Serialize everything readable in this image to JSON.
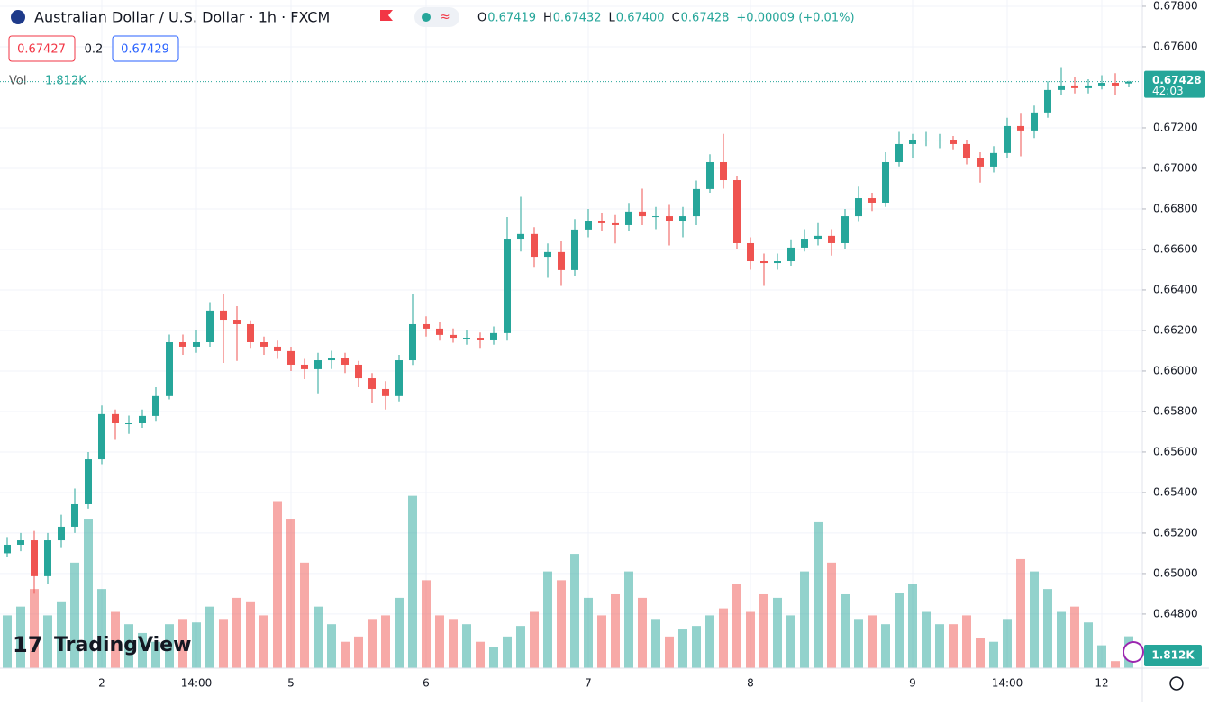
{
  "header": {
    "symbol": "Australian Dollar / U.S. Dollar · 1h · FXCM",
    "ohlc": [
      {
        "key": "O",
        "value": "0.67419"
      },
      {
        "key": "H",
        "value": "0.67432"
      },
      {
        "key": "L",
        "value": "0.67400"
      },
      {
        "key": "C",
        "value": "0.67428"
      }
    ],
    "change": "+0.00009 (+0.01%)",
    "bid": "0.67427",
    "spread": "0.2",
    "ask": "0.67429",
    "vol_title": "Vol",
    "vol_value": "1.812K",
    "countdown": "42:03",
    "volume_tag": "1.812K",
    "logo": "TradingView"
  },
  "chart_data": {
    "type": "candlestick",
    "up_color": "#26a69a",
    "down_color": "#ef5350",
    "grid": true,
    "categories": [
      null,
      null,
      null,
      null,
      null,
      null,
      null,
      "2",
      null,
      null,
      null,
      null,
      null,
      null,
      "14:00",
      null,
      null,
      null,
      null,
      null,
      null,
      "5",
      null,
      null,
      null,
      null,
      null,
      null,
      null,
      null,
      null,
      "6",
      null,
      null,
      null,
      null,
      null,
      null,
      null,
      null,
      null,
      null,
      null,
      "7",
      null,
      null,
      null,
      null,
      null,
      null,
      null,
      null,
      null,
      null,
      null,
      "8",
      null,
      null,
      null,
      null,
      null,
      null,
      null,
      null,
      null,
      null,
      null,
      "9",
      null,
      null,
      null,
      null,
      null,
      null,
      "14:00",
      null,
      null,
      null,
      null,
      null,
      null,
      "12",
      null,
      null
    ],
    "open": [
      0.651,
      0.65142,
      0.65164,
      0.64987,
      0.65164,
      0.65231,
      0.65342,
      0.65564,
      0.65787,
      0.65742,
      0.65742,
      0.65778,
      0.65876,
      0.66142,
      0.6612,
      0.66142,
      0.66298,
      0.66253,
      0.66231,
      0.66142,
      0.6612,
      0.66098,
      0.66031,
      0.66009,
      0.66053,
      0.66062,
      0.66031,
      0.65964,
      0.65911,
      0.65876,
      0.66053,
      0.66231,
      0.66209,
      0.66178,
      0.66164,
      0.66164,
      0.66151,
      0.66187,
      0.66653,
      0.66676,
      0.66564,
      0.66587,
      0.66498,
      0.66698,
      0.66742,
      0.66729,
      0.6672,
      0.66787,
      0.66764,
      0.66764,
      0.66742,
      0.66764,
      0.66898,
      0.67031,
      0.66942,
      0.66631,
      0.66542,
      0.66533,
      0.66542,
      0.66609,
      0.66653,
      0.66667,
      0.66631,
      0.66764,
      0.66853,
      0.66831,
      0.67031,
      0.6712,
      0.67142,
      0.67142,
      0.67142,
      0.6712,
      0.67053,
      0.67009,
      0.67076,
      0.67209,
      0.67187,
      0.67276,
      0.67387,
      0.67409,
      0.67396,
      0.67409,
      0.67422,
      0.67419
    ],
    "high": [
      0.6518,
      0.652,
      0.6521,
      0.652,
      0.6529,
      0.6542,
      0.656,
      0.6583,
      0.6581,
      0.6578,
      0.6581,
      0.6592,
      0.6618,
      0.6618,
      0.662,
      0.6634,
      0.6638,
      0.6632,
      0.6625,
      0.6617,
      0.6615,
      0.6612,
      0.6606,
      0.6609,
      0.661,
      0.6609,
      0.6605,
      0.6599,
      0.6595,
      0.6608,
      0.6638,
      0.6627,
      0.6624,
      0.6621,
      0.662,
      0.6619,
      0.6622,
      0.6676,
      0.6686,
      0.6671,
      0.6663,
      0.6664,
      0.6675,
      0.668,
      0.6678,
      0.6677,
      0.6683,
      0.669,
      0.6681,
      0.6682,
      0.6681,
      0.6694,
      0.6707,
      0.6717,
      0.6696,
      0.6666,
      0.6658,
      0.6658,
      0.6665,
      0.667,
      0.6673,
      0.667,
      0.668,
      0.6691,
      0.6688,
      0.6708,
      0.6718,
      0.6717,
      0.6718,
      0.6717,
      0.6716,
      0.6714,
      0.6708,
      0.6711,
      0.6725,
      0.6727,
      0.6731,
      0.6743,
      0.675,
      0.6745,
      0.6744,
      0.6746,
      0.6747,
      0.67432
    ],
    "low": [
      0.6508,
      0.6511,
      0.649,
      0.6495,
      0.6513,
      0.652,
      0.6532,
      0.6554,
      0.6566,
      0.6569,
      0.6572,
      0.6575,
      0.6586,
      0.6608,
      0.6609,
      0.6612,
      0.6604,
      0.6605,
      0.6611,
      0.6608,
      0.6606,
      0.66,
      0.6596,
      0.6589,
      0.6601,
      0.6599,
      0.6592,
      0.6584,
      0.6581,
      0.6585,
      0.6603,
      0.6617,
      0.6615,
      0.6614,
      0.6613,
      0.6611,
      0.6613,
      0.6615,
      0.6659,
      0.6651,
      0.6646,
      0.6642,
      0.6647,
      0.6666,
      0.6669,
      0.6663,
      0.6669,
      0.6672,
      0.667,
      0.6662,
      0.6666,
      0.6672,
      0.6688,
      0.669,
      0.666,
      0.665,
      0.6642,
      0.665,
      0.6652,
      0.6659,
      0.6662,
      0.6657,
      0.666,
      0.6674,
      0.6679,
      0.6681,
      0.6701,
      0.6705,
      0.6711,
      0.671,
      0.6709,
      0.6702,
      0.6693,
      0.6698,
      0.6705,
      0.6706,
      0.6715,
      0.6725,
      0.6736,
      0.6737,
      0.6737,
      0.6739,
      0.6736,
      0.674
    ],
    "close": [
      0.65142,
      0.65164,
      0.64987,
      0.65164,
      0.65231,
      0.65342,
      0.65564,
      0.65787,
      0.65742,
      0.65742,
      0.65778,
      0.65876,
      0.66142,
      0.6612,
      0.66142,
      0.66298,
      0.66253,
      0.66231,
      0.66142,
      0.6612,
      0.66098,
      0.66031,
      0.66009,
      0.66053,
      0.66062,
      0.66031,
      0.65964,
      0.65911,
      0.65876,
      0.66053,
      0.66231,
      0.66209,
      0.66178,
      0.66164,
      0.66164,
      0.66151,
      0.66187,
      0.66653,
      0.66676,
      0.66564,
      0.66587,
      0.66498,
      0.66698,
      0.66742,
      0.66729,
      0.6672,
      0.66787,
      0.66764,
      0.66764,
      0.66742,
      0.66764,
      0.66898,
      0.67031,
      0.66942,
      0.66631,
      0.66542,
      0.66533,
      0.66542,
      0.66609,
      0.66653,
      0.66667,
      0.66631,
      0.66764,
      0.66853,
      0.66831,
      0.67031,
      0.6712,
      0.67142,
      0.67142,
      0.67142,
      0.6712,
      0.67053,
      0.67009,
      0.67076,
      0.67209,
      0.67187,
      0.67276,
      0.67387,
      0.67409,
      0.67396,
      0.67409,
      0.67422,
      0.67409,
      0.67428
    ],
    "volume": [
      3000,
      3500,
      4500,
      3000,
      3800,
      6000,
      8500,
      4500,
      3200,
      2500,
      2000,
      1500,
      2500,
      2800,
      2600,
      3500,
      2800,
      4000,
      3800,
      3000,
      9500,
      8500,
      6000,
      3500,
      2500,
      1500,
      1800,
      2800,
      3000,
      4000,
      9800,
      5000,
      3000,
      2800,
      2500,
      1500,
      1200,
      1800,
      2400,
      3200,
      5500,
      5000,
      6500,
      4000,
      3000,
      4200,
      5500,
      4000,
      2800,
      1800,
      2200,
      2400,
      3000,
      3400,
      4800,
      3200,
      4200,
      4000,
      3000,
      5500,
      8300,
      6000,
      4200,
      2800,
      3000,
      2500,
      4300,
      4800,
      3200,
      2500,
      2500,
      3000,
      1700,
      1500,
      2800,
      6200,
      5500,
      4500,
      3200,
      3500,
      2600,
      1300,
      400,
      1812
    ],
    "volume_lim": [
      0,
      38000
    ],
    "ylim": [
      0.64533,
      0.67831
    ],
    "yticks": [
      {
        "value": 0.648,
        "label": "0.64800"
      },
      {
        "value": 0.65,
        "label": "0.65000"
      },
      {
        "value": 0.652,
        "label": "0.65200"
      },
      {
        "value": 0.654,
        "label": "0.65400"
      },
      {
        "value": 0.656,
        "label": "0.65600"
      },
      {
        "value": 0.658,
        "label": "0.65800"
      },
      {
        "value": 0.66,
        "label": "0.66000"
      },
      {
        "value": 0.662,
        "label": "0.66200"
      },
      {
        "value": 0.664,
        "label": "0.66400"
      },
      {
        "value": 0.666,
        "label": "0.66600"
      },
      {
        "value": 0.668,
        "label": "0.66800"
      },
      {
        "value": 0.67,
        "label": "0.67000"
      },
      {
        "value": 0.672,
        "label": "0.67200"
      },
      {
        "value": 0.676,
        "label": "0.67600"
      },
      {
        "value": 0.678,
        "label": "0.67800"
      }
    ],
    "last_price": {
      "value": 0.67428,
      "label": "0.67428"
    }
  }
}
